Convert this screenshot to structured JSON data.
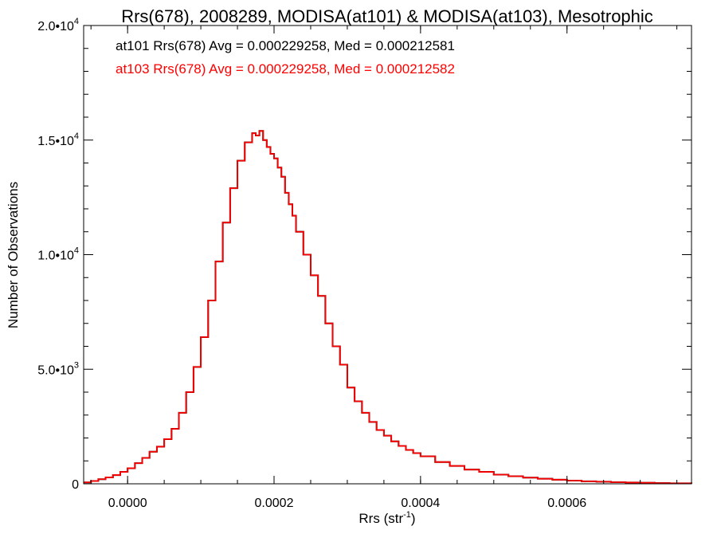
{
  "chart_data": {
    "type": "line",
    "title": "Rrs(678), 2008289, MODISA(at101) & MODISA(at103), Mesotrophic",
    "xlabel": "Rrs (str",
    "xlabel_sup": "-1",
    "xlabel_tail": ")",
    "ylabel": "Number of Observations",
    "xlim": [
      -6e-05,
      0.00077
    ],
    "ylim": [
      0,
      20000
    ],
    "xticks": [
      {
        "value": 0.0,
        "label": "0.0000"
      },
      {
        "value": 0.0002,
        "label": "0.0002"
      },
      {
        "value": 0.0004,
        "label": "0.0004"
      },
      {
        "value": 0.0006,
        "label": "0.0006"
      }
    ],
    "yticks": [
      {
        "value": 0,
        "label": "0",
        "sup": ""
      },
      {
        "value": 5000,
        "label": "5.0•10",
        "sup": "3"
      },
      {
        "value": 10000,
        "label": "1.0•10",
        "sup": "4"
      },
      {
        "value": 15000,
        "label": "1.5•10",
        "sup": "4"
      },
      {
        "value": 20000,
        "label": "2.0•10",
        "sup": "4"
      }
    ],
    "annotations": [
      {
        "text": "at101 Rrs(678) Avg = 0.000229258, Med = 0.000212581",
        "color": "#000000"
      },
      {
        "text": "at103 Rrs(678) Avg = 0.000229258, Med = 0.000212582",
        "color": "#ff0000"
      }
    ],
    "series": [
      {
        "name": "at101",
        "color": "#000000",
        "x": [
          -6e-05,
          -5e-05,
          -4e-05,
          -3e-05,
          -2e-05,
          -1e-05,
          0.0,
          1e-05,
          2e-05,
          3e-05,
          4e-05,
          5e-05,
          6e-05,
          7e-05,
          8e-05,
          9e-05,
          0.0001,
          0.00011,
          0.00012,
          0.00013,
          0.00014,
          0.00015,
          0.00016,
          0.00017,
          0.000175,
          0.00018,
          0.000185,
          0.00019,
          0.000195,
          0.0002,
          0.000205,
          0.00021,
          0.000215,
          0.00022,
          0.000225,
          0.00023,
          0.00024,
          0.00025,
          0.00026,
          0.00027,
          0.00028,
          0.00029,
          0.0003,
          0.00031,
          0.00032,
          0.00033,
          0.00034,
          0.00035,
          0.00036,
          0.00037,
          0.00038,
          0.00039,
          0.0004,
          0.00042,
          0.00044,
          0.00046,
          0.00048,
          0.0005,
          0.00052,
          0.00054,
          0.00056,
          0.00058,
          0.0006,
          0.00062,
          0.00064,
          0.00066,
          0.00068,
          0.0007,
          0.00072,
          0.00074,
          0.00077
        ],
        "y": [
          60,
          120,
          200,
          280,
          380,
          520,
          680,
          900,
          1130,
          1400,
          1620,
          1950,
          2400,
          3100,
          4000,
          5100,
          6400,
          8000,
          9700,
          11400,
          12900,
          14100,
          14900,
          15300,
          15200,
          15400,
          15000,
          14700,
          14400,
          14200,
          13800,
          13400,
          12700,
          12200,
          11700,
          11000,
          10000,
          9100,
          8200,
          7000,
          6000,
          5200,
          4200,
          3600,
          3100,
          2700,
          2350,
          2100,
          1850,
          1650,
          1480,
          1340,
          1200,
          950,
          780,
          620,
          520,
          400,
          330,
          270,
          220,
          180,
          140,
          110,
          90,
          70,
          55,
          45,
          30,
          20,
          10
        ]
      },
      {
        "name": "at103",
        "color": "#ff0000",
        "x": [
          -6e-05,
          -5e-05,
          -4e-05,
          -3e-05,
          -2e-05,
          -1e-05,
          0.0,
          1e-05,
          2e-05,
          3e-05,
          4e-05,
          5e-05,
          6e-05,
          7e-05,
          8e-05,
          9e-05,
          0.0001,
          0.00011,
          0.00012,
          0.00013,
          0.00014,
          0.00015,
          0.00016,
          0.00017,
          0.000175,
          0.00018,
          0.000185,
          0.00019,
          0.000195,
          0.0002,
          0.000205,
          0.00021,
          0.000215,
          0.00022,
          0.000225,
          0.00023,
          0.00024,
          0.00025,
          0.00026,
          0.00027,
          0.00028,
          0.00029,
          0.0003,
          0.00031,
          0.00032,
          0.00033,
          0.00034,
          0.00035,
          0.00036,
          0.00037,
          0.00038,
          0.00039,
          0.0004,
          0.00042,
          0.00044,
          0.00046,
          0.00048,
          0.0005,
          0.00052,
          0.00054,
          0.00056,
          0.00058,
          0.0006,
          0.00062,
          0.00064,
          0.00066,
          0.00068,
          0.0007,
          0.00072,
          0.00074,
          0.00077
        ],
        "y": [
          60,
          120,
          200,
          280,
          380,
          520,
          680,
          900,
          1130,
          1400,
          1620,
          1950,
          2400,
          3100,
          4000,
          5100,
          6400,
          8000,
          9700,
          11400,
          12900,
          14100,
          14900,
          15300,
          15200,
          15400,
          15000,
          14700,
          14400,
          14200,
          13800,
          13400,
          12700,
          12200,
          11700,
          11000,
          10000,
          9100,
          8200,
          7000,
          6000,
          5200,
          4200,
          3600,
          3100,
          2700,
          2350,
          2100,
          1850,
          1650,
          1480,
          1340,
          1200,
          950,
          780,
          620,
          520,
          400,
          330,
          270,
          220,
          180,
          140,
          110,
          90,
          70,
          55,
          45,
          30,
          20,
          10
        ]
      }
    ]
  }
}
